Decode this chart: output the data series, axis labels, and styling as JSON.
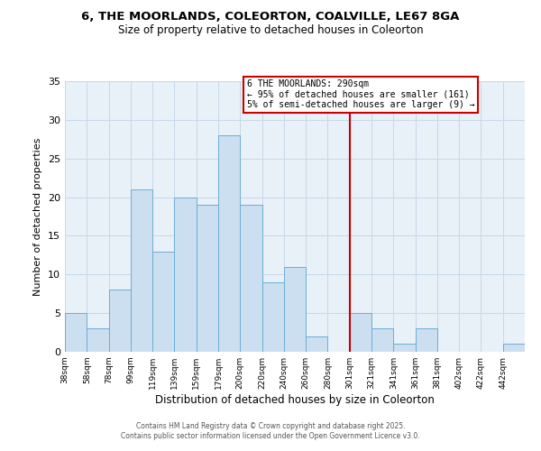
{
  "title1": "6, THE MOORLANDS, COLEORTON, COALVILLE, LE67 8GA",
  "title2": "Size of property relative to detached houses in Coleorton",
  "xlabel": "Distribution of detached houses by size in Coleorton",
  "ylabel": "Number of detached properties",
  "bin_labels": [
    "38sqm",
    "58sqm",
    "78sqm",
    "99sqm",
    "119sqm",
    "139sqm",
    "159sqm",
    "179sqm",
    "200sqm",
    "220sqm",
    "240sqm",
    "260sqm",
    "280sqm",
    "301sqm",
    "321sqm",
    "341sqm",
    "361sqm",
    "381sqm",
    "402sqm",
    "422sqm",
    "442sqm"
  ],
  "bar_heights": [
    5,
    3,
    8,
    21,
    13,
    20,
    19,
    28,
    19,
    9,
    11,
    2,
    0,
    5,
    3,
    1,
    3,
    0,
    0,
    0,
    1
  ],
  "bar_color": "#ccdff0",
  "bar_edge_color": "#6baed6",
  "grid_color": "#c8d8e8",
  "bg_color": "#e8f0f8",
  "marker_label": "6 THE MOORLANDS: 290sqm",
  "annotation_line1": "← 95% of detached houses are smaller (161)",
  "annotation_line2": "5% of semi-detached houses are larger (9) →",
  "annotation_box_color": "#ffffff",
  "annotation_box_edge": "#cc0000",
  "marker_line_color": "#cc0000",
  "ylim": [
    0,
    35
  ],
  "yticks": [
    0,
    5,
    10,
    15,
    20,
    25,
    30,
    35
  ],
  "footer1": "Contains HM Land Registry data © Crown copyright and database right 2025.",
  "footer2": "Contains public sector information licensed under the Open Government Licence v3.0."
}
